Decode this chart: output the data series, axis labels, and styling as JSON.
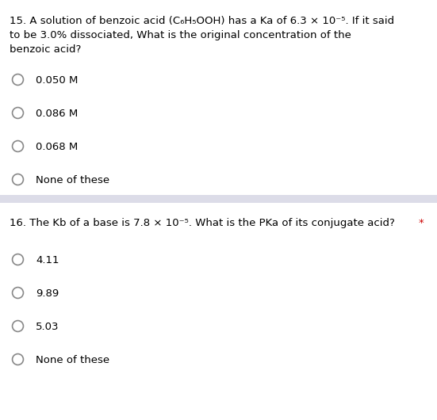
{
  "bg_color": "#ffffff",
  "separator_color": "#dcdce8",
  "q15": {
    "line1": "15. A solution of benzoic acid (C₆H₅OOH) has a Ka of 6.3 × 10⁻⁵. If it said",
    "line2": "to be 3.0% dissociated, What is the original concentration of the",
    "line3": "benzoic acid?",
    "options": [
      "0.050 M",
      "0.086 M",
      "0.068 M",
      "None of these"
    ]
  },
  "q16": {
    "question": "16. The Kb of a base is 7.8 × 10⁻⁵. What is the PKa of its conjugate acid?",
    "options": [
      "4.11",
      "9.89",
      "5.03",
      "None of these"
    ]
  },
  "font_size": 9.5,
  "circle_color": "#888888",
  "text_color": "#000000",
  "star_color": "#cc0000",
  "circle_size": 10,
  "circle_lw": 1.2
}
